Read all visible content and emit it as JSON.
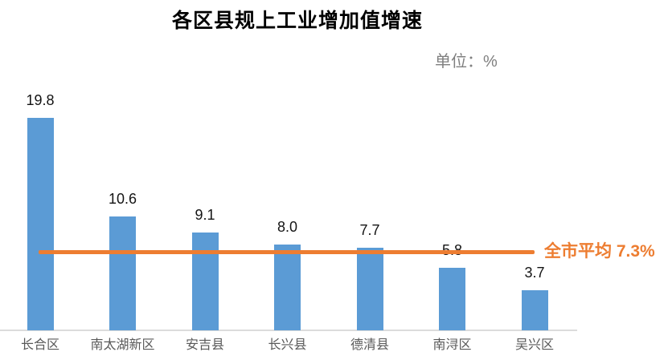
{
  "chart_data": {
    "type": "bar",
    "title": "各区县规上工业增加值增速",
    "unit_label": "单位：%",
    "categories": [
      "长合区",
      "南太湖新区",
      "安吉县",
      "长兴县",
      "德清县",
      "南浔区",
      "吴兴区"
    ],
    "values": [
      19.8,
      10.6,
      9.1,
      8.0,
      7.7,
      5.8,
      3.7
    ],
    "data_labels": [
      "19.8",
      "10.6",
      "9.1",
      "8.0",
      "7.7",
      "5.8",
      "3.7"
    ],
    "average_line": {
      "value": 7.3,
      "label": "全市平均 7.3%"
    },
    "xlabel": "",
    "ylabel": "",
    "ylim": [
      0,
      21
    ],
    "grid": false,
    "legend_position": "none",
    "bar_color": "#5B9BD5",
    "line_color": "#ED7D31",
    "title_color": "#000000",
    "unit_label_color": "#7f7f7f",
    "category_label_color": "#595959",
    "value_label_color": "#141414"
  }
}
